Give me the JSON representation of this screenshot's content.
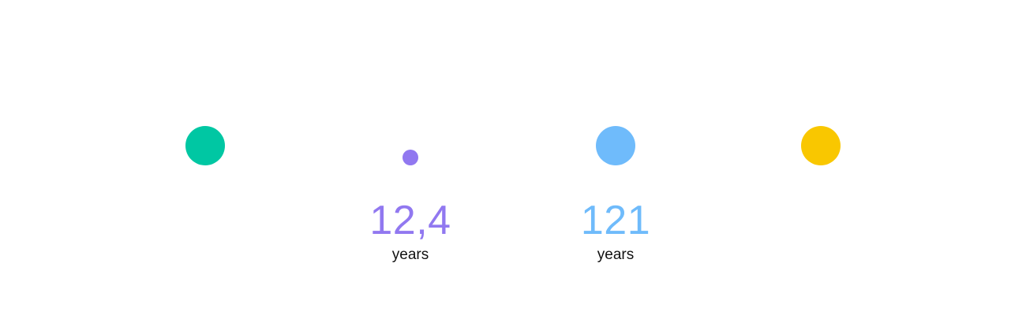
{
  "colors": {
    "green": "#00c7a3",
    "purple": "#9178f0",
    "blue": "#6fbbfb",
    "yellow": "#f9c700"
  },
  "items": [
    {
      "color": "#00c7a3"
    },
    {
      "color": "#9178f0",
      "value": "12,4",
      "unit": "years"
    },
    {
      "color": "#6fbbfb",
      "value": "121",
      "unit": "years"
    },
    {
      "color": "#f9c700"
    }
  ]
}
